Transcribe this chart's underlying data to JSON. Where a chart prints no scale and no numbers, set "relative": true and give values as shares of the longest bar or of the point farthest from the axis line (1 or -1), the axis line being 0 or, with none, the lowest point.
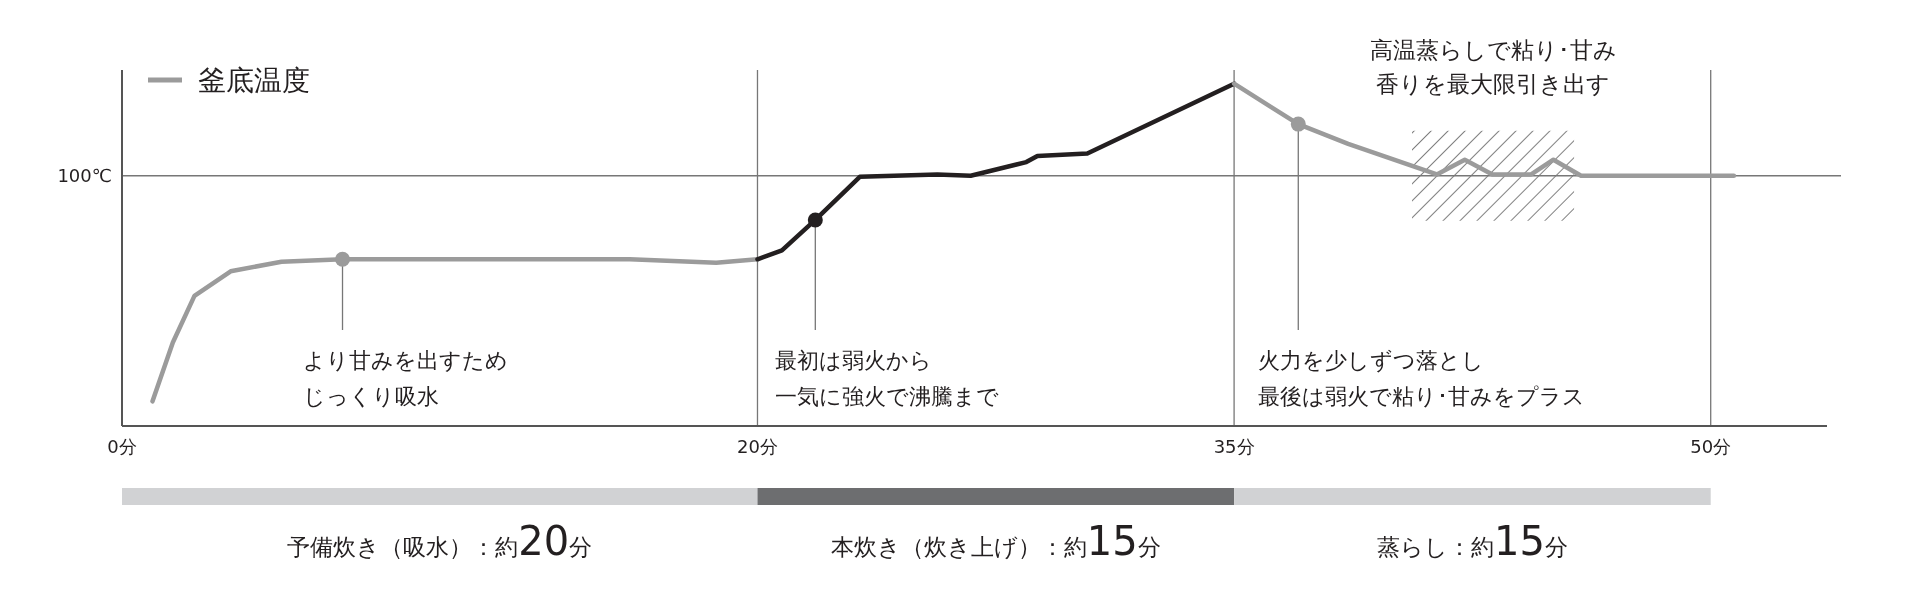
{
  "chart_data": [
    {
      "type": "line",
      "relative": true,
      "xlim": [
        0,
        53.66
      ],
      "xticks": [
        {
          "value": 0,
          "label": "0分"
        },
        {
          "value": 20,
          "label": "20分"
        },
        {
          "value": 35,
          "label": "35分"
        },
        {
          "value": 50,
          "label": "50分"
        }
      ],
      "grid": "x",
      "legend": "top left",
      "line_style": "solid",
      "series": [
        {
          "name": "釜底温度",
          "color": "#9b9b9b",
          "x": [
            0.96,
            1.6,
            2.28,
            3.42,
            5.02,
            6.94,
            15.98,
            18.7,
            20
          ],
          "values": [
            0.072,
            0.244,
            0.38,
            0.452,
            0.48,
            0.487,
            0.487,
            0.477,
            0.487
          ]
        },
        {
          "color": "#231f20",
          "x": [
            20,
            20.77,
            21.82,
            23.22,
            25.66,
            26.71,
            28.46,
            28.81,
            30.38,
            35
          ],
          "values": [
            0.487,
            0.513,
            0.602,
            0.728,
            0.735,
            0.731,
            0.771,
            0.789,
            0.796,
            1
          ]
        },
        {
          "color": "#9b9b9b",
          "x": [
            35,
            37.02,
            38.59,
            41.38,
            42.26,
            43.13,
            44.35,
            45.05,
            45.92,
            50.73
          ],
          "values": [
            1,
            0.882,
            0.824,
            0.735,
            0.778,
            0.735,
            0.735,
            0.778,
            0.731,
            0.731
          ]
        },
        {
          "type": "scatter",
          "x": [
            6.94,
            21.82,
            37.02
          ],
          "values": [
            0.487,
            0.602,
            0.882
          ],
          "colors": [
            "#9b9b9b",
            "#231f20",
            "#9b9b9b"
          ]
        }
      ],
      "ref_lines": [
        {
          "axis": "y",
          "value": 0.731,
          "label": "100℃",
          "color": "#777777"
        }
      ],
      "bands": [
        {
          "axis": "x",
          "from": 40.6,
          "to": 45.7,
          "label": "高温蒸らしで粘り･甘み香りを最大限引き出す"
        }
      ],
      "annotations": [
        {
          "text": "より甘みを出すため",
          "x": 6.94,
          "y": 0.487
        },
        "じっくり吸水",
        {
          "text": "最初は弱火から",
          "x": 21.82,
          "y": 0.602
        },
        "一気に強火で沸騰まで",
        {
          "text": "火力を少しずつ落とし",
          "x": 37.02,
          "y": 0.882
        },
        "最後は弱火で粘り･甘みをプラス"
      ]
    },
    {
      "type": "bar",
      "orientation": "horizontal",
      "stacked": true,
      "categories": [
        null
      ],
      "series": [
        {
          "name": "予備炊き（吸水）：",
          "color": "#d1d2d4",
          "values": [
            20
          ],
          "value_labels": [
            "約20分"
          ]
        },
        {
          "name": "本炊き（炊き上げ）：",
          "color": "#6d6e70",
          "values": [
            15
          ],
          "value_labels": [
            "約15分"
          ]
        },
        {
          "name": "蒸らし：",
          "color": "#d1d2d4",
          "values": [
            15
          ],
          "value_labels": [
            "約15分"
          ]
        }
      ]
    }
  ]
}
